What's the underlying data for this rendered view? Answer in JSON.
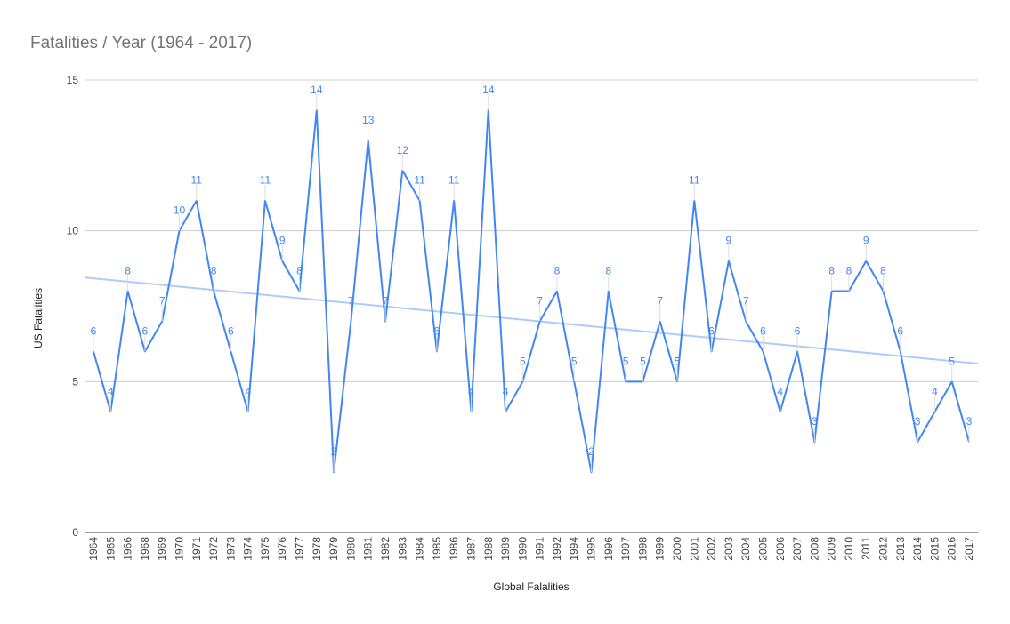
{
  "chart_data": {
    "type": "line",
    "title": "Fatalities / Year (1964 - 2017)",
    "xlabel": "Global Falalities",
    "ylabel": "US Fatalities",
    "ylim": [
      0,
      15
    ],
    "yticks": [
      "0",
      "5",
      "10",
      "15"
    ],
    "grid": true,
    "legend": "none",
    "colors": {
      "series": "#4285f4",
      "trendline": "#aecbfa"
    },
    "categories": [
      "1964",
      "1965",
      "1966",
      "1968",
      "1969",
      "1970",
      "1971",
      "1972",
      "1973",
      "1974",
      "1975",
      "1976",
      "1977",
      "1978",
      "1979",
      "1980",
      "1981",
      "1982",
      "1983",
      "1984",
      "1985",
      "1986",
      "1987",
      "1988",
      "1989",
      "1990",
      "1991",
      "1992",
      "1994",
      "1995",
      "1996",
      "1997",
      "1998",
      "1999",
      "2000",
      "2001",
      "2002",
      "2003",
      "2004",
      "2005",
      "2006",
      "2007",
      "2008",
      "2009",
      "2010",
      "2011",
      "2012",
      "2013",
      "2014",
      "2015",
      "2016",
      "2017"
    ],
    "series": [
      {
        "values": [
          6,
          4,
          8,
          6,
          7,
          10,
          11,
          8,
          6,
          4,
          11,
          9,
          8,
          14,
          2,
          7,
          13,
          7,
          12,
          11,
          6,
          11,
          4,
          14,
          4,
          5,
          7,
          8,
          5,
          2,
          8,
          5,
          5,
          7,
          5,
          11,
          6,
          9,
          7,
          6,
          4,
          6,
          3,
          8,
          8,
          9,
          8,
          6,
          3,
          4,
          5,
          3
        ]
      }
    ],
    "trendline": {
      "type": "linear",
      "start": 8.45,
      "end": 5.6
    }
  }
}
